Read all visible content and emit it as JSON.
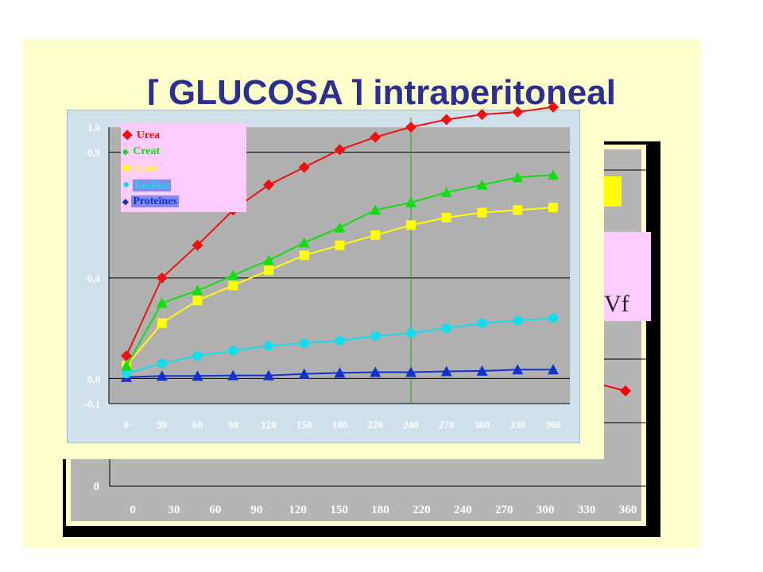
{
  "slide": {
    "title": "[ GLUCOSA ]  intraperitoneal"
  },
  "back_chart": {
    "x_ticks": [
      "0",
      "30",
      "60",
      "90",
      "120",
      "150",
      "180",
      "220",
      "240",
      "270",
      "300",
      "330",
      "360"
    ],
    "y_ticks": [
      "0"
    ],
    "visible_text": "Vf",
    "colors": {
      "border": "#000000",
      "plot_bg": "#b5b5b5",
      "series": "#ff0000"
    }
  },
  "chart_data": {
    "type": "line",
    "x": [
      "0",
      "30",
      "60",
      "90",
      "120",
      "150",
      "180",
      "220",
      "240",
      "270",
      "300",
      "330",
      "360"
    ],
    "y_tick_labels": [
      "1,0",
      "0,9",
      "0,4",
      "0,0",
      "-0,1"
    ],
    "y_tick_values": [
      1.0,
      0.9,
      0.4,
      0.0,
      -0.1
    ],
    "ylim": [
      -0.1,
      1.0
    ],
    "grid": true,
    "reference_line_x": "240",
    "legend_position": "top-left",
    "series": [
      {
        "name": "Urea",
        "color": "#ee1111",
        "marker": "diamond",
        "values": [
          0.09,
          0.4,
          0.53,
          0.67,
          0.77,
          0.84,
          0.91,
          0.96,
          1.0,
          1.03,
          1.05,
          1.06,
          1.08
        ]
      },
      {
        "name": "Creat",
        "color": "#11dd11",
        "marker": "triangle",
        "values": [
          0.05,
          0.3,
          0.35,
          0.41,
          0.47,
          0.54,
          0.6,
          0.67,
          0.7,
          0.74,
          0.77,
          0.8,
          0.81
        ]
      },
      {
        "name": "Urat",
        "color": "#ffff00",
        "marker": "square",
        "values": [
          0.05,
          0.22,
          0.31,
          0.37,
          0.43,
          0.49,
          0.53,
          0.57,
          0.61,
          0.64,
          0.66,
          0.67,
          0.68
        ]
      },
      {
        "name": "Inulina",
        "color": "#11ddee",
        "marker": "circle",
        "values": [
          0.02,
          0.06,
          0.09,
          0.11,
          0.13,
          0.14,
          0.15,
          0.17,
          0.18,
          0.2,
          0.22,
          0.23,
          0.24
        ]
      },
      {
        "name": "Proteïnes",
        "color": "#1133cc",
        "marker": "triangle",
        "values": [
          0.005,
          0.01,
          0.01,
          0.012,
          0.012,
          0.018,
          0.022,
          0.025,
          0.025,
          0.028,
          0.03,
          0.035,
          0.035
        ]
      }
    ]
  }
}
